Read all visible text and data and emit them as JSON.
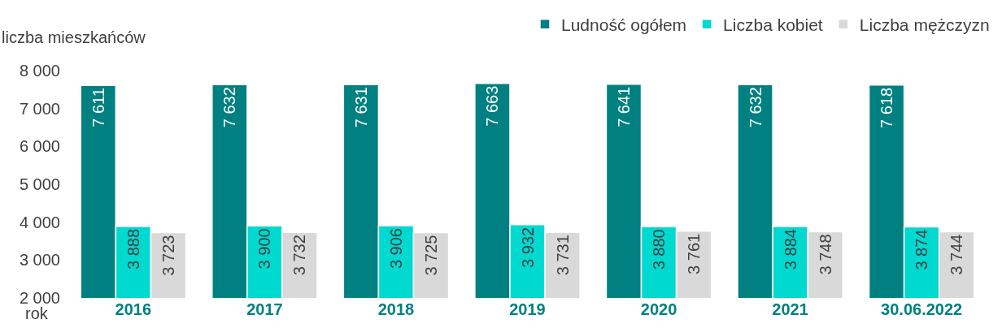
{
  "chart_data": {
    "type": "bar",
    "ylabel": "liczba mieszkańców",
    "xlabel": "rok",
    "categories": [
      "2016",
      "2017",
      "2018",
      "2019",
      "2020",
      "2021",
      "30.06.2022"
    ],
    "series": [
      {
        "name": "Ludność ogółem",
        "color": "#008080",
        "values": [
          7611,
          7632,
          7631,
          7663,
          7641,
          7632,
          7618
        ],
        "value_labels": [
          "7 611",
          "7 632",
          "7 631",
          "7 663",
          "7 641",
          "7 632",
          "7 618"
        ]
      },
      {
        "name": "Liczba kobiet",
        "color": "#00d9d0",
        "values": [
          3888,
          3900,
          3906,
          3932,
          3880,
          3884,
          3874
        ],
        "value_labels": [
          "3 888",
          "3 900",
          "3 906",
          "3 932",
          "3 880",
          "3 884",
          "3 874"
        ]
      },
      {
        "name": "Liczba mężczyzn",
        "color": "#d9d9d9",
        "values": [
          3723,
          3732,
          3725,
          3731,
          3761,
          3748,
          3744
        ],
        "value_labels": [
          "3 723",
          "3 732",
          "3 725",
          "3 731",
          "3 761",
          "3 748",
          "3 744"
        ]
      }
    ],
    "ylim": [
      2000,
      8000
    ],
    "yticks": [
      {
        "value": 2000,
        "label": "2 000"
      },
      {
        "value": 3000,
        "label": "3 000"
      },
      {
        "value": 4000,
        "label": "4 000"
      },
      {
        "value": 5000,
        "label": "5 000"
      },
      {
        "value": 6000,
        "label": "6 000"
      },
      {
        "value": 7000,
        "label": "7 000"
      },
      {
        "value": 8000,
        "label": "8 000"
      }
    ],
    "grid": false,
    "legend": "top right"
  }
}
